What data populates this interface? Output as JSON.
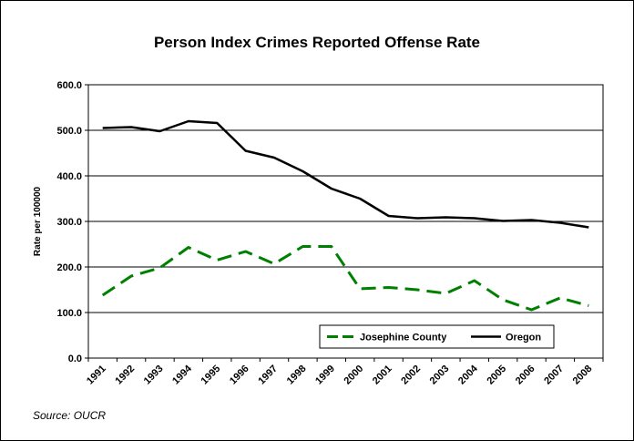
{
  "chart_data": {
    "type": "line",
    "title": "Person Index Crimes Reported Offense Rate",
    "xlabel": "",
    "ylabel": "Rate per 100000",
    "categories": [
      "1991",
      "1992",
      "1993",
      "1994",
      "1995",
      "1996",
      "1997",
      "1998",
      "1999",
      "2000",
      "2001",
      "2002",
      "2003",
      "2004",
      "2005",
      "2006",
      "2007",
      "2008"
    ],
    "ylim": [
      0,
      600
    ],
    "yticks": [
      "0.0",
      "100.0",
      "200.0",
      "300.0",
      "400.0",
      "500.0",
      "600.0"
    ],
    "grid": true,
    "legend_position": "bottom-right",
    "series": [
      {
        "name": "Josephine County",
        "color": "#008000",
        "dash": "dashed",
        "values": [
          138,
          180,
          198,
          243,
          215,
          234,
          207,
          245,
          245,
          152,
          155,
          150,
          142,
          170,
          128,
          106,
          132,
          115
        ]
      },
      {
        "name": "Oregon",
        "color": "#000000",
        "dash": "solid",
        "values": [
          505,
          507,
          498,
          520,
          516,
          455,
          440,
          410,
          372,
          350,
          312,
          307,
          309,
          307,
          301,
          303,
          297,
          287
        ]
      }
    ],
    "source": "Source: OUCR"
  }
}
